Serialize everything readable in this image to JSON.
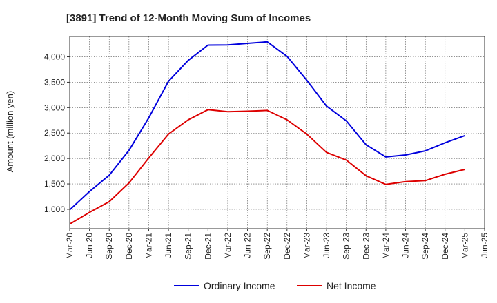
{
  "chart_data": {
    "type": "line",
    "title": "[3891]  Trend of 12-Month Moving Sum of Incomes",
    "xlabel": "",
    "ylabel": "Amount (million yen)",
    "categories": [
      "Mar-20",
      "Jun-20",
      "Sep-20",
      "Dec-20",
      "Mar-21",
      "Jun-21",
      "Sep-21",
      "Dec-21",
      "Mar-22",
      "Jun-22",
      "Sep-22",
      "Dec-22",
      "Mar-23",
      "Jun-23",
      "Sep-23",
      "Dec-23",
      "Mar-24",
      "Jun-24",
      "Sep-24",
      "Dec-24",
      "Mar-25",
      "Jun-25"
    ],
    "yticks": [
      1000,
      1500,
      2000,
      2500,
      3000,
      3500,
      4000
    ],
    "ytick_labels": [
      "1,000",
      "1,500",
      "2,000",
      "2,500",
      "3,000",
      "3,500",
      "4,000"
    ],
    "ylim": [
      620,
      4400
    ],
    "grid": true,
    "legend_position": "bottom",
    "series": [
      {
        "name": "Ordinary Income",
        "color": "#0000dd",
        "values": [
          990,
          1350,
          1670,
          2160,
          2800,
          3520,
          3930,
          4230,
          4235,
          4265,
          4295,
          4010,
          3540,
          3030,
          2740,
          2270,
          2030,
          2070,
          2150,
          2310,
          2450,
          null
        ]
      },
      {
        "name": "Net Income",
        "color": "#dd0000",
        "values": [
          710,
          940,
          1150,
          1520,
          2010,
          2480,
          2760,
          2960,
          2920,
          2930,
          2945,
          2760,
          2480,
          2120,
          1970,
          1660,
          1490,
          1545,
          1565,
          1690,
          1785,
          null
        ]
      }
    ]
  }
}
